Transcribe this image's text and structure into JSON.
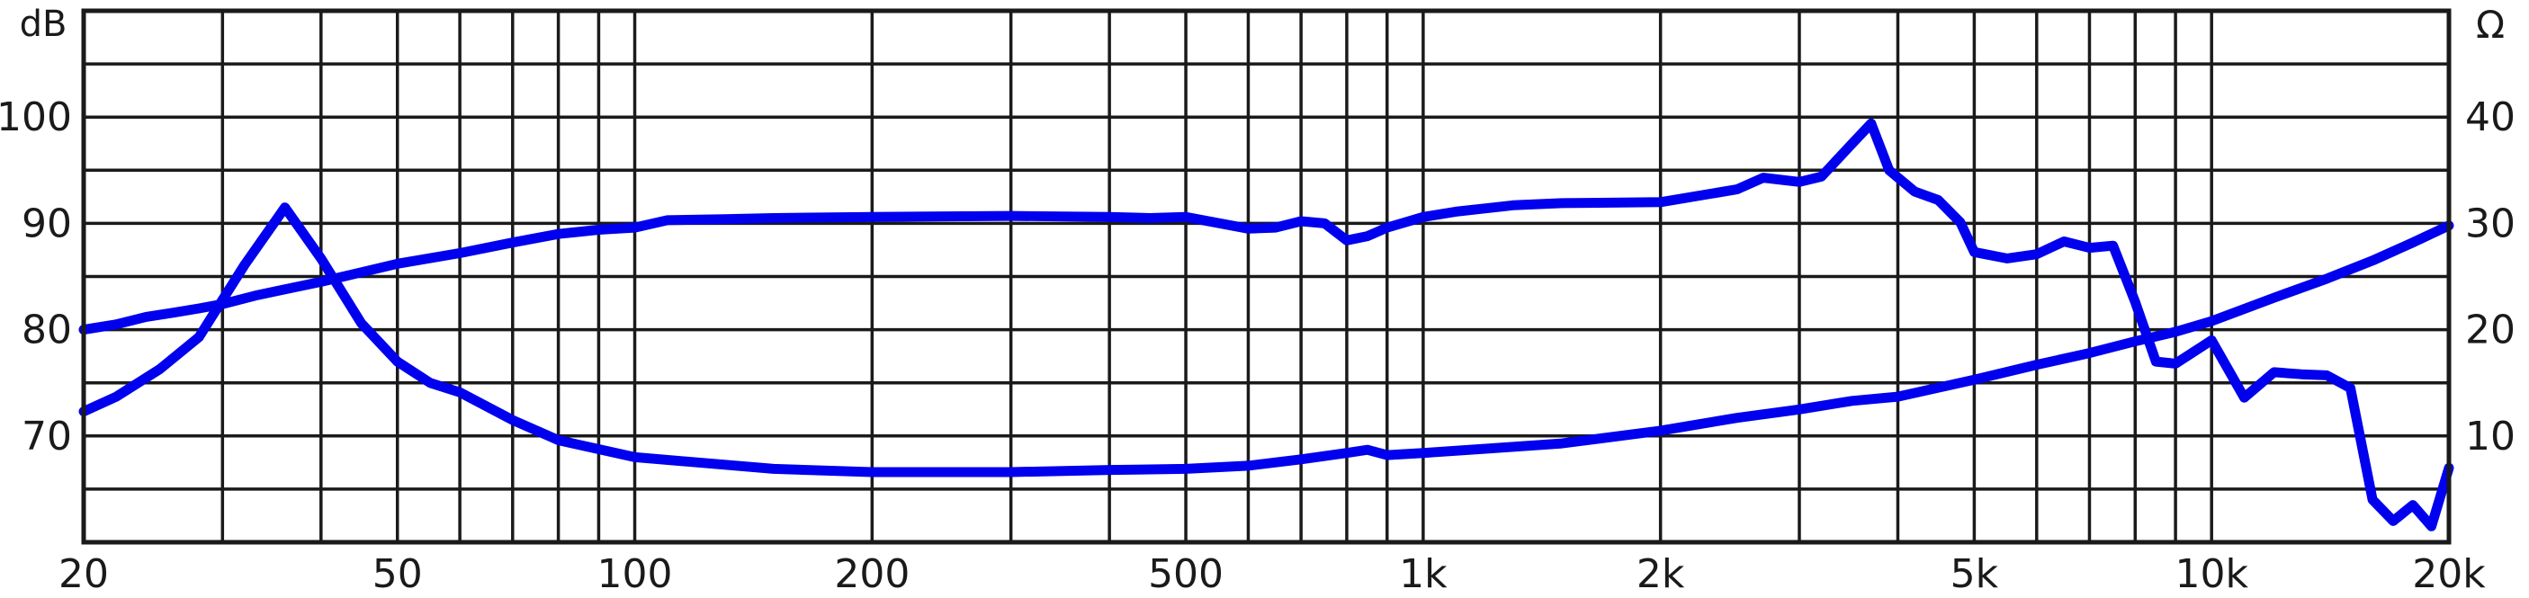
{
  "chart_data": {
    "type": "line",
    "title": "",
    "left_unit_label": "dB",
    "right_unit_label": "Ω",
    "x_scale": "log",
    "xlim": [
      20,
      20000
    ],
    "ylim_left": [
      60,
      110
    ],
    "ylim_right": [
      0,
      50
    ],
    "grid": true,
    "x_ticks": [
      {
        "value": 20,
        "label": "20"
      },
      {
        "value": 50,
        "label": "50"
      },
      {
        "value": 100,
        "label": "100"
      },
      {
        "value": 200,
        "label": "200"
      },
      {
        "value": 500,
        "label": "500"
      },
      {
        "value": 1000,
        "label": "1k"
      },
      {
        "value": 2000,
        "label": "2k"
      },
      {
        "value": 5000,
        "label": "5k"
      },
      {
        "value": 10000,
        "label": "10k"
      },
      {
        "value": 20000,
        "label": "20k"
      }
    ],
    "left_ticks": [
      {
        "value": 70,
        "label": "70"
      },
      {
        "value": 80,
        "label": "80"
      },
      {
        "value": 90,
        "label": "90"
      },
      {
        "value": 100,
        "label": "100"
      }
    ],
    "right_ticks": [
      {
        "value": 10,
        "label": "10"
      },
      {
        "value": 20,
        "label": "20"
      },
      {
        "value": 30,
        "label": "30"
      },
      {
        "value": 40,
        "label": "40"
      }
    ],
    "series": [
      {
        "axis": "left",
        "color": "#0000ee",
        "x": [
          20,
          22,
          24,
          26,
          28,
          30,
          33,
          36,
          40,
          45,
          50,
          60,
          70,
          80,
          90,
          100,
          110,
          130,
          150,
          200,
          300,
          400,
          450,
          500,
          600,
          650,
          700,
          750,
          800,
          850,
          900,
          1000,
          1100,
          1300,
          1500,
          2000,
          2500,
          2700,
          3000,
          3200,
          3500,
          3700,
          3900,
          4200,
          4500,
          4800,
          5000,
          5500,
          6000,
          6500,
          7000,
          7500,
          8000,
          8500,
          9000,
          10000,
          11000,
          12000,
          13000,
          14000,
          15000,
          16000,
          17000,
          18000,
          19000,
          20000
        ],
        "y": [
          80,
          80.5,
          81.2,
          81.6,
          82,
          82.4,
          83.2,
          83.8,
          84.5,
          85.4,
          86.2,
          87.2,
          88.2,
          89,
          89.4,
          89.6,
          90.3,
          90.4,
          90.5,
          90.6,
          90.7,
          90.6,
          90.5,
          90.6,
          89.5,
          89.6,
          90.2,
          90,
          88.4,
          88.8,
          89.6,
          90.6,
          91.1,
          91.7,
          91.9,
          92,
          93.2,
          94.3,
          93.9,
          94.4,
          97.5,
          99.4,
          95,
          93,
          92.2,
          90.1,
          87.3,
          86.7,
          87.1,
          88.3,
          87.7,
          87.9,
          82.6,
          77,
          76.8,
          79,
          73.6,
          76,
          75.8,
          75.7,
          74.5,
          64,
          62,
          63.5,
          61.5,
          67
        ]
      },
      {
        "axis": "right",
        "color": "#0000ee",
        "x": [
          20,
          22,
          25,
          28,
          32,
          36,
          40,
          45,
          50,
          55,
          60,
          70,
          80,
          100,
          150,
          200,
          300,
          400,
          500,
          600,
          700,
          800,
          850,
          900,
          1000,
          1200,
          1500,
          2000,
          2500,
          3000,
          3500,
          4000,
          5000,
          6000,
          7000,
          8000,
          9000,
          10000,
          12000,
          14000,
          16000,
          18000,
          20000
        ],
        "y": [
          12.3,
          13.7,
          16.3,
          19.3,
          26.1,
          31.5,
          26.7,
          20.6,
          17,
          15,
          14.1,
          11.5,
          9.6,
          8,
          6.9,
          6.6,
          6.6,
          6.8,
          6.9,
          7.2,
          7.8,
          8.4,
          8.7,
          8.2,
          8.4,
          8.8,
          9.3,
          10.5,
          11.7,
          12.5,
          13.3,
          13.7,
          15.3,
          16.7,
          17.8,
          18.9,
          19.8,
          20.8,
          23,
          24.8,
          26.5,
          28.2,
          29.8
        ]
      }
    ]
  }
}
